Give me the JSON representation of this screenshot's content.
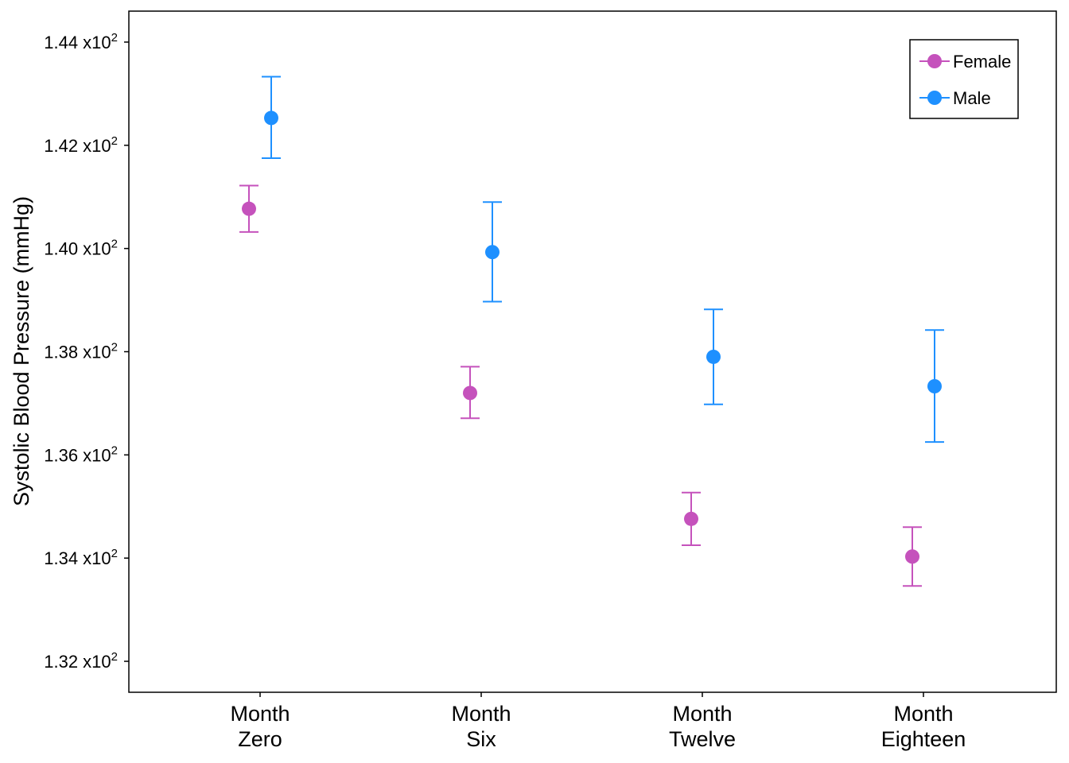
{
  "chart_data": {
    "type": "scatter",
    "title": "",
    "xlabel": "",
    "ylabel": "Systolic Blood Pressure (mmHg)",
    "categories": [
      [
        "Month",
        "Zero"
      ],
      [
        "Month",
        "Six"
      ],
      [
        "Month",
        "Twelve"
      ],
      [
        "Month",
        "Eighteen"
      ]
    ],
    "ylim": [
      131.4,
      144.6
    ],
    "yticks": [
      132,
      134,
      136,
      138,
      140,
      142,
      144
    ],
    "ytick_labels": [
      {
        "mantissa": "1.32",
        "base": "x10",
        "exp": "2"
      },
      {
        "mantissa": "1.34",
        "base": "x10",
        "exp": "2"
      },
      {
        "mantissa": "1.36",
        "base": "x10",
        "exp": "2"
      },
      {
        "mantissa": "1.38",
        "base": "x10",
        "exp": "2"
      },
      {
        "mantissa": "1.40",
        "base": "x10",
        "exp": "2"
      },
      {
        "mantissa": "1.42",
        "base": "x10",
        "exp": "2"
      },
      {
        "mantissa": "1.44",
        "base": "x10",
        "exp": "2"
      }
    ],
    "legend_position": "top-right",
    "grid": false,
    "series": [
      {
        "name": "Female",
        "color": "#C552BC",
        "values": [
          140.77,
          137.2,
          134.76,
          134.03
        ],
        "lower": [
          140.32,
          136.71,
          134.25,
          133.46
        ],
        "upper": [
          141.22,
          137.71,
          135.27,
          134.6
        ]
      },
      {
        "name": "Male",
        "color": "#1E90FF",
        "values": [
          142.53,
          139.93,
          137.9,
          137.33
        ],
        "lower": [
          141.75,
          138.97,
          136.98,
          136.25
        ],
        "upper": [
          143.33,
          140.9,
          138.82,
          138.42
        ]
      }
    ]
  }
}
